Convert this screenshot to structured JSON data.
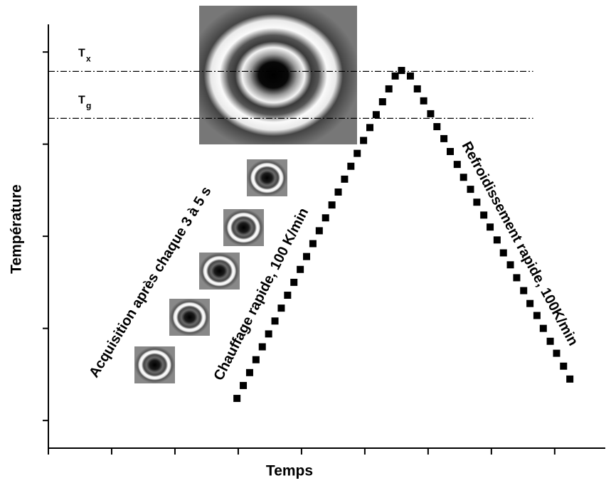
{
  "chart_data": {
    "type": "scatter",
    "xlabel": "Temps",
    "ylabel": "Température",
    "xlim": [
      0,
      8.8
    ],
    "ylim": [
      0,
      4.6
    ],
    "xticks": [
      0,
      1,
      2,
      3,
      4,
      5,
      6,
      7,
      8
    ],
    "yticks": [
      0.3,
      1.3,
      2.3,
      3.3,
      4.3
    ],
    "color": "#000000",
    "x": [
      2.98,
      3.08,
      3.18,
      3.28,
      3.38,
      3.48,
      3.58,
      3.68,
      3.78,
      3.88,
      3.98,
      4.08,
      4.18,
      4.28,
      4.38,
      4.48,
      4.58,
      4.68,
      4.78,
      4.88,
      4.98,
      5.08,
      5.18,
      5.28,
      5.38,
      5.48,
      5.58,
      5.72,
      5.83,
      5.93,
      6.04,
      6.14,
      6.25,
      6.35,
      6.46,
      6.56,
      6.67,
      6.77,
      6.88,
      6.98,
      7.09,
      7.19,
      7.3,
      7.4,
      7.51,
      7.61,
      7.72,
      7.82,
      7.93,
      8.03,
      8.14,
      8.24
    ],
    "values": [
      0.54,
      0.68,
      0.82,
      0.96,
      1.1,
      1.24,
      1.38,
      1.52,
      1.66,
      1.8,
      1.94,
      2.08,
      2.22,
      2.36,
      2.5,
      2.64,
      2.78,
      2.92,
      3.06,
      3.2,
      3.34,
      3.48,
      3.62,
      3.76,
      3.9,
      4.04,
      4.1,
      4.04,
      3.9,
      3.77,
      3.63,
      3.49,
      3.36,
      3.22,
      3.08,
      2.94,
      2.81,
      2.67,
      2.53,
      2.4,
      2.26,
      2.12,
      1.99,
      1.85,
      1.71,
      1.57,
      1.44,
      1.3,
      1.16,
      1.03,
      0.89,
      0.75
    ],
    "hlines": [
      {
        "label": "T",
        "sub": "x",
        "value": 4.09,
        "x_end": 7.66
      },
      {
        "label": "T",
        "sub": "g",
        "value": 3.58,
        "x_end": 7.66
      }
    ],
    "annotations": [
      "Acquisition après chaque 3 à 5 s",
      "Chauffage rapide, 100 K/min",
      "Refroidissement rapide, 100K/min"
    ]
  }
}
